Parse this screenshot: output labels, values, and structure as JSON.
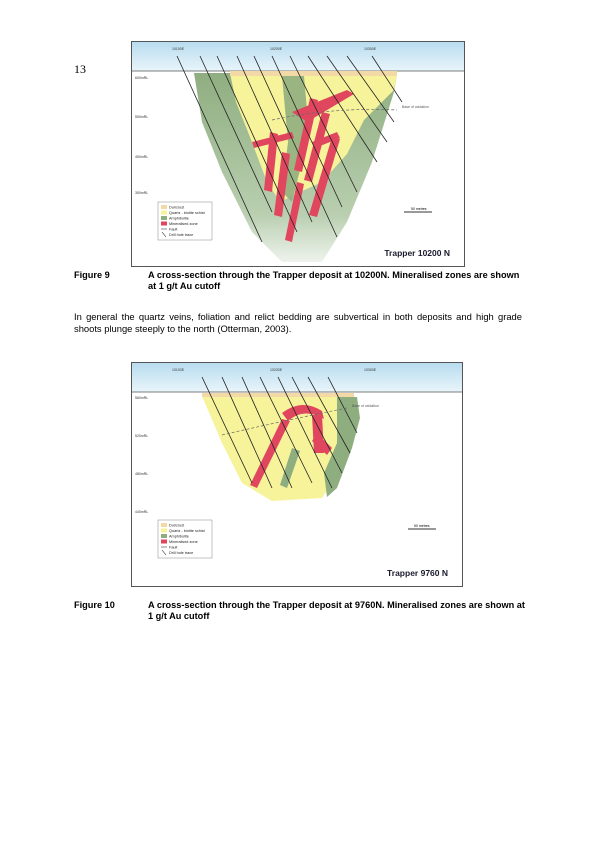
{
  "page_number": "13",
  "figure9": {
    "image_title": "Trapper 10200 N",
    "caption_label": "Figure 9",
    "caption_text": "A cross-section through the Trapper deposit at 10200N. Mineralised zones are shown at 1 g/t Au cutoff",
    "scale_label": "50 metres",
    "annotation": "Base of oxidation",
    "eastings": [
      "10100E",
      "10200E",
      "10300E"
    ],
    "elevations": [
      "600mRL",
      "550mRL",
      "450mRL",
      "350mRL"
    ]
  },
  "paragraph": "In general the quartz veins, foliation and relict bedding are subvertical in both deposits and high grade shoots plunge steeply to the north (Otterman, 2003).",
  "figure10": {
    "image_title": "Trapper 9760 N",
    "caption_label": "Figure 10",
    "caption_text": "A cross-section through the Trapper deposit at 9760N. Mineralised zones are shown at 1 g/t Au cutoff",
    "scale_label": "50 metres",
    "annotation": "Base of oxidation",
    "eastings": [
      "10100E",
      "10200E",
      "10300E"
    ],
    "elevations": [
      "560mRL",
      "520mRL",
      "480mRL",
      "440mRL"
    ]
  },
  "legend": [
    {
      "label": "Duricrust",
      "color": "#f2d9a6",
      "kind": "box"
    },
    {
      "label": "Quartz - biotite schist",
      "color": "#f7f39a",
      "kind": "box"
    },
    {
      "label": "Amphibolite",
      "color": "#8fae80",
      "kind": "box"
    },
    {
      "label": "Mineralised zone",
      "color": "#e0475f",
      "kind": "box"
    },
    {
      "label": "Fault",
      "color": "#444444",
      "kind": "line"
    },
    {
      "label": "Drill hole trace",
      "color": "#222222",
      "kind": "slash"
    }
  ],
  "colors": {
    "sky": "#c9e6f3",
    "schist": "#f7f39a",
    "amphibolite": "#8fae80",
    "mineralised": "#e0475f",
    "duricrust": "#f2d9a6"
  }
}
